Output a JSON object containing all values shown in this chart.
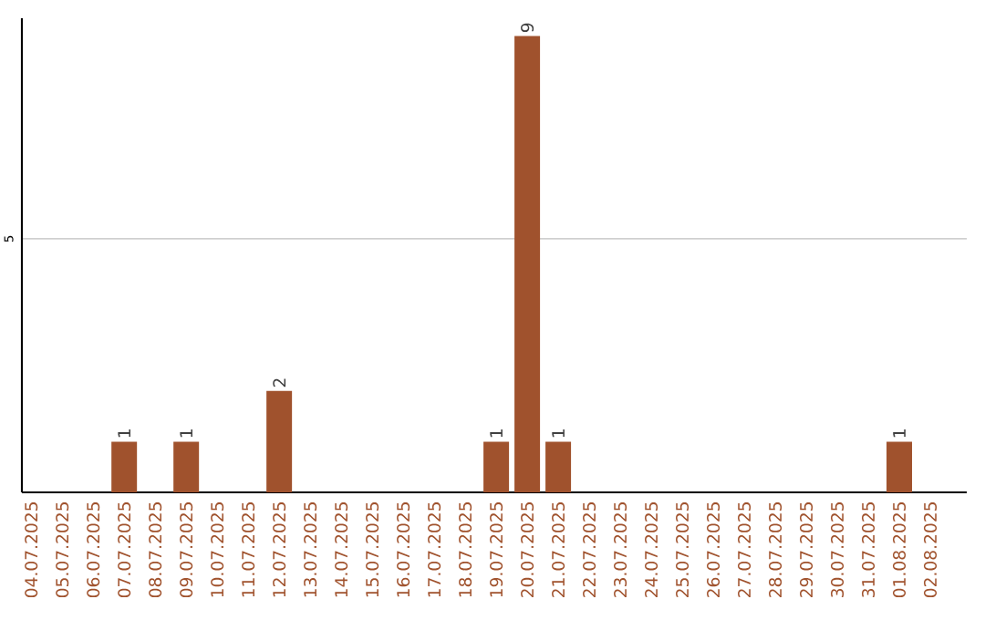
{
  "chart_data": {
    "type": "bar",
    "categories": [
      "04.07.2025",
      "05.07.2025",
      "06.07.2025",
      "07.07.2025",
      "08.07.2025",
      "09.07.2025",
      "10.07.2025",
      "11.07.2025",
      "12.07.2025",
      "13.07.2025",
      "14.07.2025",
      "15.07.2025",
      "16.07.2025",
      "17.07.2025",
      "18.07.2025",
      "19.07.2025",
      "20.07.2025",
      "21.07.2025",
      "22.07.2025",
      "23.07.2025",
      "24.07.2025",
      "25.07.2025",
      "26.07.2025",
      "27.07.2025",
      "28.07.2025",
      "29.07.2025",
      "30.07.2025",
      "31.07.2025",
      "01.08.2025",
      "02.08.2025"
    ],
    "values": [
      0,
      0,
      0,
      1,
      0,
      1,
      0,
      0,
      2,
      0,
      0,
      0,
      0,
      0,
      0,
      1,
      9,
      1,
      0,
      0,
      0,
      0,
      0,
      0,
      0,
      0,
      0,
      0,
      1,
      0
    ],
    "value_labels": [
      null,
      null,
      null,
      "1",
      null,
      "1",
      null,
      null,
      "2",
      null,
      null,
      null,
      null,
      null,
      null,
      "1",
      "9",
      "1",
      null,
      null,
      null,
      null,
      null,
      null,
      null,
      null,
      null,
      null,
      "1",
      null
    ],
    "color": "#a0522d",
    "ylim": [
      0,
      9.35
    ],
    "yticks": [
      5
    ],
    "grid": "y"
  }
}
